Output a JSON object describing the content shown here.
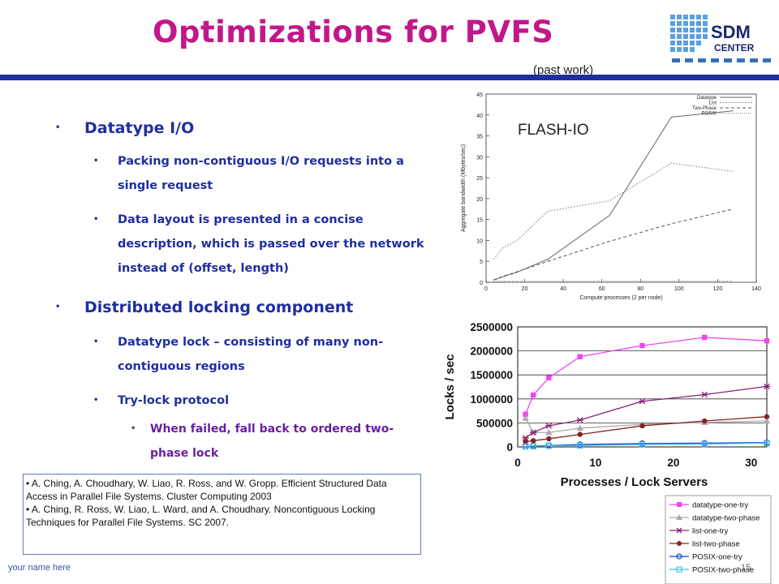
{
  "slide": {
    "title": "Optimizations for PVFS",
    "subtitle": "(past work)",
    "footer": "your name here",
    "page_number": "15"
  },
  "logo": {
    "line1": "SDM",
    "line2": "CENTER"
  },
  "bullets": [
    {
      "level": 1,
      "text": "Datatype I/O"
    },
    {
      "level": 2,
      "text": "Packing non-contiguous I/O requests into a single request"
    },
    {
      "level": 2,
      "text": "Data layout is presented in a concise description, which is passed over the network instead of (offset, length)"
    },
    {
      "level": 1,
      "text": "Distributed locking component"
    },
    {
      "level": 2,
      "text": "Datatype lock – consisting of many non-contiguous regions"
    },
    {
      "level": 2,
      "text": "Try-lock protocol"
    },
    {
      "level": 3,
      "text": "When failed, fall back to ordered two-phase lock"
    }
  ],
  "references": [
    "• A. Ching, A. Choudhary, W. Liao, R. Ross, and W. Gropp. Efficient Structured Data Access in Parallel File Systems. Cluster Computing 2003",
    "• A. Ching, R. Ross, W. Liao, L. Ward, and A. Choudhary. Noncontiguous Locking Techniques for Parallel File Systems. SC 2007."
  ],
  "chart_data": [
    {
      "type": "line",
      "title": "FLASH-IO",
      "xlabel": "Compute processes (2 per node)",
      "ylabel": "Aggregate bandwidth (Mbytes/sec)",
      "xlim": [
        0,
        140
      ],
      "ylim": [
        0,
        45
      ],
      "xticks": [
        0,
        20,
        40,
        60,
        80,
        100,
        120,
        140
      ],
      "yticks": [
        0,
        5,
        10,
        15,
        20,
        25,
        30,
        35,
        40,
        45
      ],
      "legend_position": "top-right",
      "series": [
        {
          "name": "Datatype",
          "color": "#666666",
          "dash": "",
          "x": [
            4,
            8,
            16,
            32,
            64,
            96,
            128
          ],
          "y": [
            0.5,
            1.2,
            2.4,
            5.5,
            16,
            39.5,
            41
          ]
        },
        {
          "name": "List",
          "color": "#777777",
          "dash": "1.5,2",
          "x": [
            4,
            8,
            16,
            32,
            64,
            96,
            128
          ],
          "y": [
            5.5,
            8,
            10,
            17,
            19.5,
            28.5,
            26.5
          ]
        },
        {
          "name": "Two-Phase",
          "color": "#555555",
          "dash": "4,3",
          "x": [
            4,
            8,
            16,
            32,
            64,
            96,
            128
          ],
          "y": [
            0.6,
            1.3,
            2.5,
            5,
            9.8,
            14,
            17.5
          ]
        },
        {
          "name": "POSIX",
          "color": "#888888",
          "dash": "1,1.5",
          "x": [
            4,
            8,
            16,
            32,
            64,
            96,
            128
          ],
          "y": [
            0.2,
            0.25,
            0.25,
            0.3,
            0.3,
            0.3,
            0.3
          ]
        }
      ]
    },
    {
      "type": "line",
      "xlabel": "Processes / Lock Servers",
      "ylabel": "Locks / sec",
      "xlim": [
        0,
        32
      ],
      "ylim": [
        0,
        2500000
      ],
      "xticks": [
        0,
        10,
        20,
        30
      ],
      "yticks": [
        0,
        500000,
        1000000,
        1500000,
        2000000,
        2500000
      ],
      "grid": true,
      "legend_position": "bottom-right",
      "series": [
        {
          "name": "datatype-one-try",
          "color": "#ee44ee",
          "marker": "square",
          "x": [
            1,
            2,
            4,
            8,
            16,
            24,
            32
          ],
          "y": [
            680000,
            1080000,
            1440000,
            1880000,
            2110000,
            2280000,
            2210000
          ]
        },
        {
          "name": "datatype-two-phase",
          "color": "#aaaaaa",
          "marker": "triangle",
          "x": [
            1,
            2,
            4,
            8,
            16,
            24,
            32
          ],
          "y": [
            600000,
            300000,
            300000,
            390000,
            470000,
            510000,
            540000
          ]
        },
        {
          "name": "list-one-try",
          "color": "#882277",
          "marker": "star",
          "x": [
            1,
            2,
            4,
            8,
            16,
            24,
            32
          ],
          "y": [
            190000,
            300000,
            440000,
            560000,
            950000,
            1090000,
            1260000
          ]
        },
        {
          "name": "list-two-phase",
          "color": "#882222",
          "marker": "circle",
          "x": [
            1,
            2,
            4,
            8,
            16,
            24,
            32
          ],
          "y": [
            110000,
            130000,
            170000,
            260000,
            440000,
            540000,
            630000
          ]
        },
        {
          "name": "POSIX-one-try",
          "color": "#1144cc",
          "marker": "open-circle",
          "x": [
            1,
            2,
            4,
            8,
            16,
            24,
            32
          ],
          "y": [
            10000,
            20000,
            30000,
            50000,
            70000,
            80000,
            90000
          ]
        },
        {
          "name": "POSIX-two-phase",
          "color": "#44bbee",
          "marker": "open-square",
          "x": [
            1,
            2,
            4,
            8,
            16,
            24,
            32
          ],
          "y": [
            10000,
            15000,
            25000,
            30000,
            50000,
            60000,
            80000
          ]
        }
      ]
    }
  ]
}
